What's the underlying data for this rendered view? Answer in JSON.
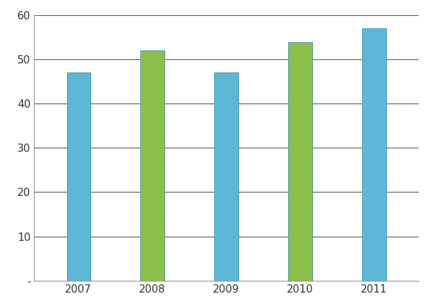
{
  "chart_data": {
    "type": "bar",
    "categories": [
      "2007",
      "2008",
      "2009",
      "2010",
      "2011"
    ],
    "values": [
      47,
      52,
      47,
      54,
      57
    ],
    "colors": [
      "#5fb7d6",
      "#8cbf4a",
      "#5fb7d6",
      "#8cbf4a",
      "#5fb7d6"
    ],
    "ylim": [
      0,
      60
    ],
    "yticks": [
      {
        "value": 0,
        "label": "-"
      },
      10,
      20,
      30,
      40,
      50,
      60
    ],
    "grid": true
  }
}
